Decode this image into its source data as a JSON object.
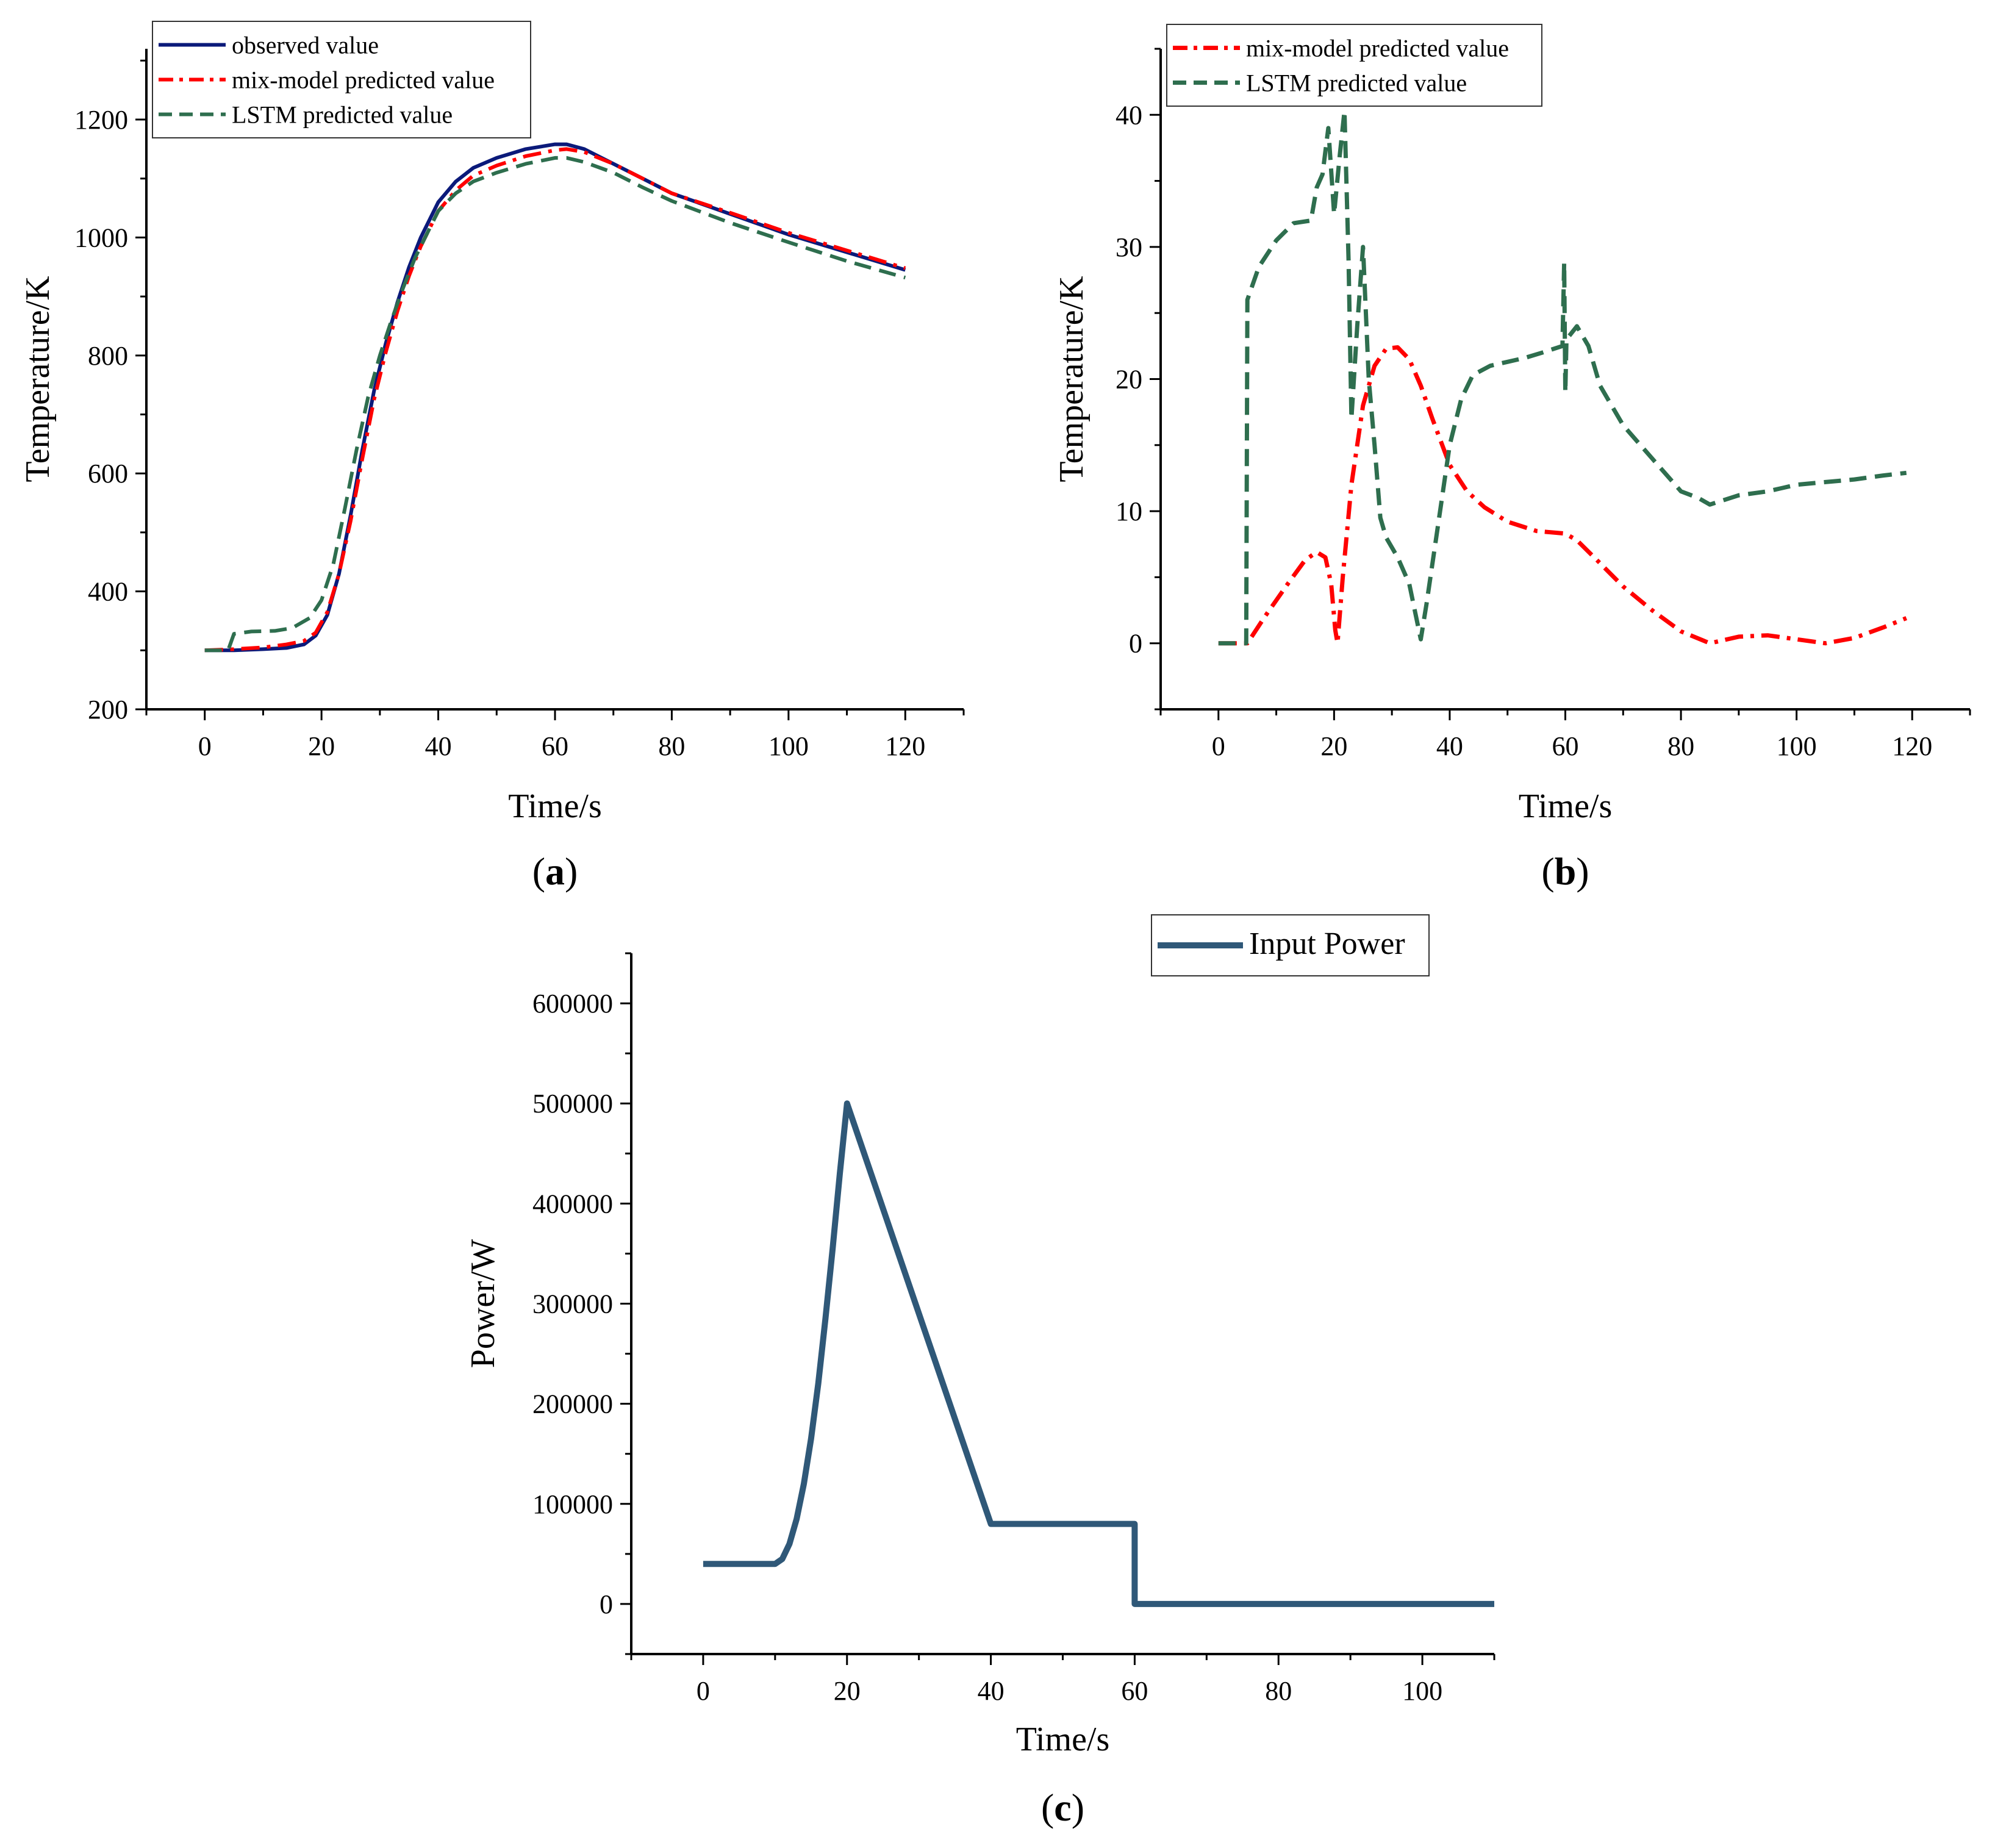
{
  "chart_data": [
    {
      "panel": "(a)",
      "panel_prefix": "(",
      "panel_letter": "a",
      "panel_suffix": ")",
      "type": "line",
      "xlabel": "Time/s",
      "ylabel": "Temperature/K",
      "xlim": [
        -10,
        130
      ],
      "ylim": [
        200,
        1320
      ],
      "xticks": [
        0,
        20,
        40,
        60,
        80,
        100,
        120
      ],
      "yticks": [
        200,
        400,
        600,
        800,
        1000,
        1200
      ],
      "legend_position": "top-left",
      "series": [
        {
          "name": "observed value",
          "style": "solid",
          "color": "#0b1a7a",
          "x": [
            0,
            5,
            10,
            14,
            17,
            19,
            21,
            23,
            25,
            27,
            29,
            31,
            33,
            35,
            37,
            40,
            43,
            46,
            50,
            55,
            60,
            62,
            65,
            70,
            75,
            80,
            90,
            100,
            110,
            120
          ],
          "y": [
            300,
            300,
            302,
            304,
            310,
            325,
            360,
            430,
            530,
            640,
            740,
            820,
            890,
            950,
            1000,
            1060,
            1095,
            1118,
            1135,
            1150,
            1158,
            1158,
            1150,
            1125,
            1100,
            1075,
            1040,
            1005,
            975,
            945
          ]
        },
        {
          "name": "mix-model predicted value",
          "style": "dashdot",
          "color": "#ff0000",
          "x": [
            0,
            5,
            10,
            14,
            17,
            19,
            21,
            23,
            25,
            27,
            29,
            31,
            33,
            35,
            37,
            40,
            43,
            46,
            50,
            55,
            60,
            62,
            65,
            70,
            75,
            80,
            90,
            100,
            110,
            120
          ],
          "y": [
            300,
            302,
            305,
            310,
            316,
            330,
            365,
            430,
            520,
            625,
            725,
            805,
            875,
            935,
            985,
            1045,
            1080,
            1105,
            1122,
            1138,
            1148,
            1150,
            1145,
            1125,
            1100,
            1075,
            1042,
            1008,
            978,
            948
          ]
        },
        {
          "name": "LSTM predicted value",
          "style": "dashed",
          "color": "#2e6e4e",
          "x": [
            0,
            4,
            5,
            8,
            12,
            15,
            18,
            20,
            22,
            24,
            26,
            28,
            30,
            32,
            34,
            36,
            38,
            40,
            43,
            46,
            50,
            55,
            60,
            62,
            65,
            70,
            75,
            80,
            90,
            100,
            110,
            120
          ],
          "y": [
            300,
            300,
            328,
            332,
            333,
            338,
            355,
            385,
            445,
            540,
            640,
            730,
            800,
            860,
            915,
            965,
            1005,
            1045,
            1075,
            1095,
            1110,
            1125,
            1135,
            1135,
            1128,
            1110,
            1085,
            1062,
            1025,
            992,
            960,
            932
          ]
        }
      ]
    },
    {
      "panel": "(b)",
      "panel_prefix": "(",
      "panel_letter": "b",
      "panel_suffix": ")",
      "type": "line",
      "xlabel": "Time/s",
      "ylabel": "Temperature/K",
      "xlim": [
        -10,
        130
      ],
      "ylim": [
        -5,
        45
      ],
      "xticks": [
        0,
        20,
        40,
        60,
        80,
        100,
        120
      ],
      "yticks": [
        0,
        10,
        20,
        30,
        40
      ],
      "legend_position": "top-left",
      "series": [
        {
          "name": "mix-model predicted value",
          "style": "dashdot",
          "color": "#ff0000",
          "x": [
            0,
            3,
            5,
            8,
            12,
            15,
            17,
            18.5,
            19.5,
            20.2,
            20.6,
            21.5,
            23,
            25,
            27,
            29,
            31,
            33,
            35,
            37,
            40,
            43,
            46,
            50,
            55,
            60,
            62,
            65,
            70,
            75,
            80,
            85,
            90,
            95,
            100,
            105,
            110,
            115,
            119
          ],
          "y": [
            0,
            0,
            0,
            2,
            4.5,
            6.3,
            6.9,
            6.5,
            4.5,
            1,
            0,
            5,
            12,
            18,
            21,
            22.3,
            22.4,
            21.5,
            19.5,
            17,
            13.5,
            11.5,
            10.3,
            9.2,
            8.5,
            8.3,
            7.8,
            6.5,
            4.3,
            2.5,
            0.9,
            0,
            0.5,
            0.6,
            0.3,
            0,
            0.4,
            1.2,
            1.9
          ]
        },
        {
          "name": "LSTM predicted value",
          "style": "dashed",
          "color": "#2e6e4e",
          "x": [
            0,
            4,
            4.8,
            5,
            7,
            10,
            13,
            16,
            17,
            18,
            19,
            20,
            21,
            21.8,
            22.5,
            23,
            24,
            25,
            26,
            27,
            28,
            29,
            31,
            33,
            35,
            36,
            38,
            40,
            42,
            44,
            47,
            50,
            53,
            56,
            59.5,
            59.8,
            60,
            60.2,
            62,
            64,
            66,
            70,
            75,
            80,
            83,
            85,
            90,
            95,
            100,
            105,
            110,
            115,
            119
          ],
          "y": [
            0,
            0,
            0,
            26,
            28.5,
            30.5,
            31.8,
            32,
            34.5,
            35.5,
            39,
            32.5,
            37,
            40.3,
            29,
            17,
            24,
            30,
            20,
            15,
            9.5,
            8,
            6.5,
            4.5,
            0.3,
            3,
            9,
            15,
            18.5,
            20.3,
            21,
            21.3,
            21.6,
            22,
            22.5,
            28.8,
            19,
            23,
            24,
            22.5,
            19.5,
            16.5,
            14,
            11.5,
            11,
            10.5,
            11.2,
            11.5,
            12,
            12.2,
            12.4,
            12.7,
            12.9
          ]
        }
      ]
    },
    {
      "panel": "(c)",
      "panel_prefix": "(",
      "panel_letter": "c",
      "panel_suffix": ")",
      "type": "line",
      "xlabel": "Time/s",
      "ylabel": "Power/W",
      "xlim": [
        -10,
        110
      ],
      "ylim": [
        -50000,
        650000
      ],
      "xticks": [
        0,
        20,
        40,
        60,
        80,
        100
      ],
      "yticks": [
        0,
        100000,
        200000,
        300000,
        400000,
        500000,
        600000
      ],
      "legend_position": "top-right",
      "series": [
        {
          "name": "Input Power",
          "style": "solid",
          "color": "#2f5878",
          "x": [
            0,
            10,
            11,
            12,
            13,
            14,
            15,
            16,
            17,
            18,
            19,
            20,
            40,
            60,
            60,
            110
          ],
          "y": [
            40000,
            40000,
            45000,
            60000,
            85000,
            120000,
            165000,
            220000,
            285000,
            355000,
            430000,
            500000,
            80000,
            80000,
            0,
            0
          ]
        }
      ]
    }
  ]
}
